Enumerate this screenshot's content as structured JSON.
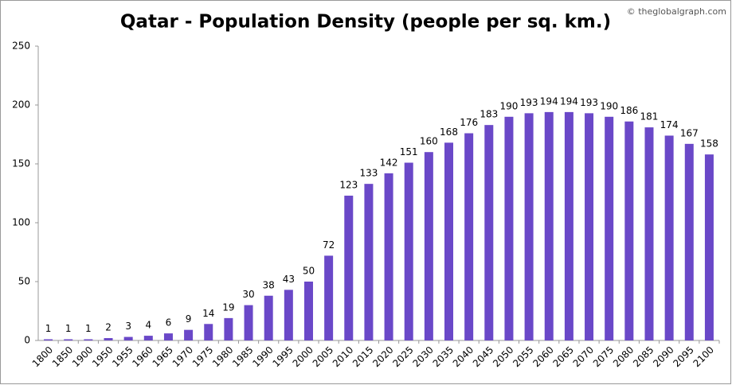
{
  "chart_data": {
    "type": "bar",
    "title": "Qatar - Population Density (people per sq. km.)",
    "watermark": "© theglobalgraph.com",
    "categories": [
      "1800",
      "1850",
      "1900",
      "1950",
      "1955",
      "1960",
      "1965",
      "1970",
      "1975",
      "1980",
      "1985",
      "1990",
      "1995",
      "2000",
      "2005",
      "2010",
      "2015",
      "2020",
      "2025",
      "2030",
      "2035",
      "2040",
      "2045",
      "2050",
      "2055",
      "2060",
      "2065",
      "2070",
      "2075",
      "2080",
      "2085",
      "2090",
      "2095",
      "2100"
    ],
    "values": [
      1,
      1,
      1,
      2,
      3,
      4,
      6,
      9,
      14,
      19,
      30,
      38,
      43,
      50,
      72,
      123,
      133,
      142,
      151,
      160,
      168,
      176,
      183,
      190,
      193,
      194,
      194,
      193,
      190,
      186,
      181,
      174,
      167,
      158
    ],
    "color": "#6a48c8",
    "ylim": [
      0,
      250
    ],
    "yticks": [
      0,
      50,
      100,
      150,
      200,
      250
    ],
    "grid": false
  }
}
